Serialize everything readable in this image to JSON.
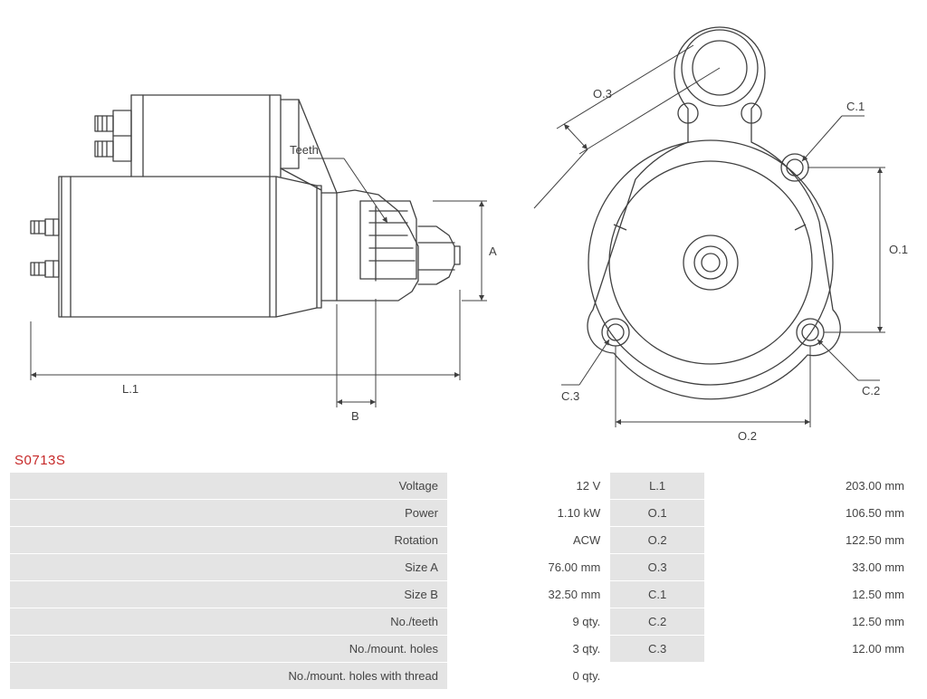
{
  "part_id": "S0713S",
  "diagram": {
    "stroke": "#404040",
    "stroke_width": 1.3,
    "label_font_size": 13,
    "label_color": "#404040",
    "arrow_size": 6
  },
  "labels": {
    "teeth": "Teeth",
    "L1": "L.1",
    "A": "A",
    "B": "B",
    "O1": "O.1",
    "O2": "O.2",
    "O3": "O.3",
    "C1": "C.1",
    "C2": "C.2",
    "C3": "C.3"
  },
  "spec_left": [
    {
      "label": "Voltage",
      "value": "12 V"
    },
    {
      "label": "Power",
      "value": "1.10 kW"
    },
    {
      "label": "Rotation",
      "value": "ACW"
    },
    {
      "label": "Size A",
      "value": "76.00 mm"
    },
    {
      "label": "Size B",
      "value": "32.50 mm"
    },
    {
      "label": "No./teeth",
      "value": "9 qty."
    },
    {
      "label": "No./mount. holes",
      "value": "3 qty."
    },
    {
      "label": "No./mount. holes with thread",
      "value": "0 qty."
    }
  ],
  "spec_right": [
    {
      "label": "L.1",
      "value": "203.00 mm"
    },
    {
      "label": "O.1",
      "value": "106.50 mm"
    },
    {
      "label": "O.2",
      "value": "122.50 mm"
    },
    {
      "label": "O.3",
      "value": "33.00 mm"
    },
    {
      "label": "C.1",
      "value": "12.50 mm"
    },
    {
      "label": "C.2",
      "value": "12.50 mm"
    },
    {
      "label": "C.3",
      "value": "12.00 mm"
    }
  ]
}
